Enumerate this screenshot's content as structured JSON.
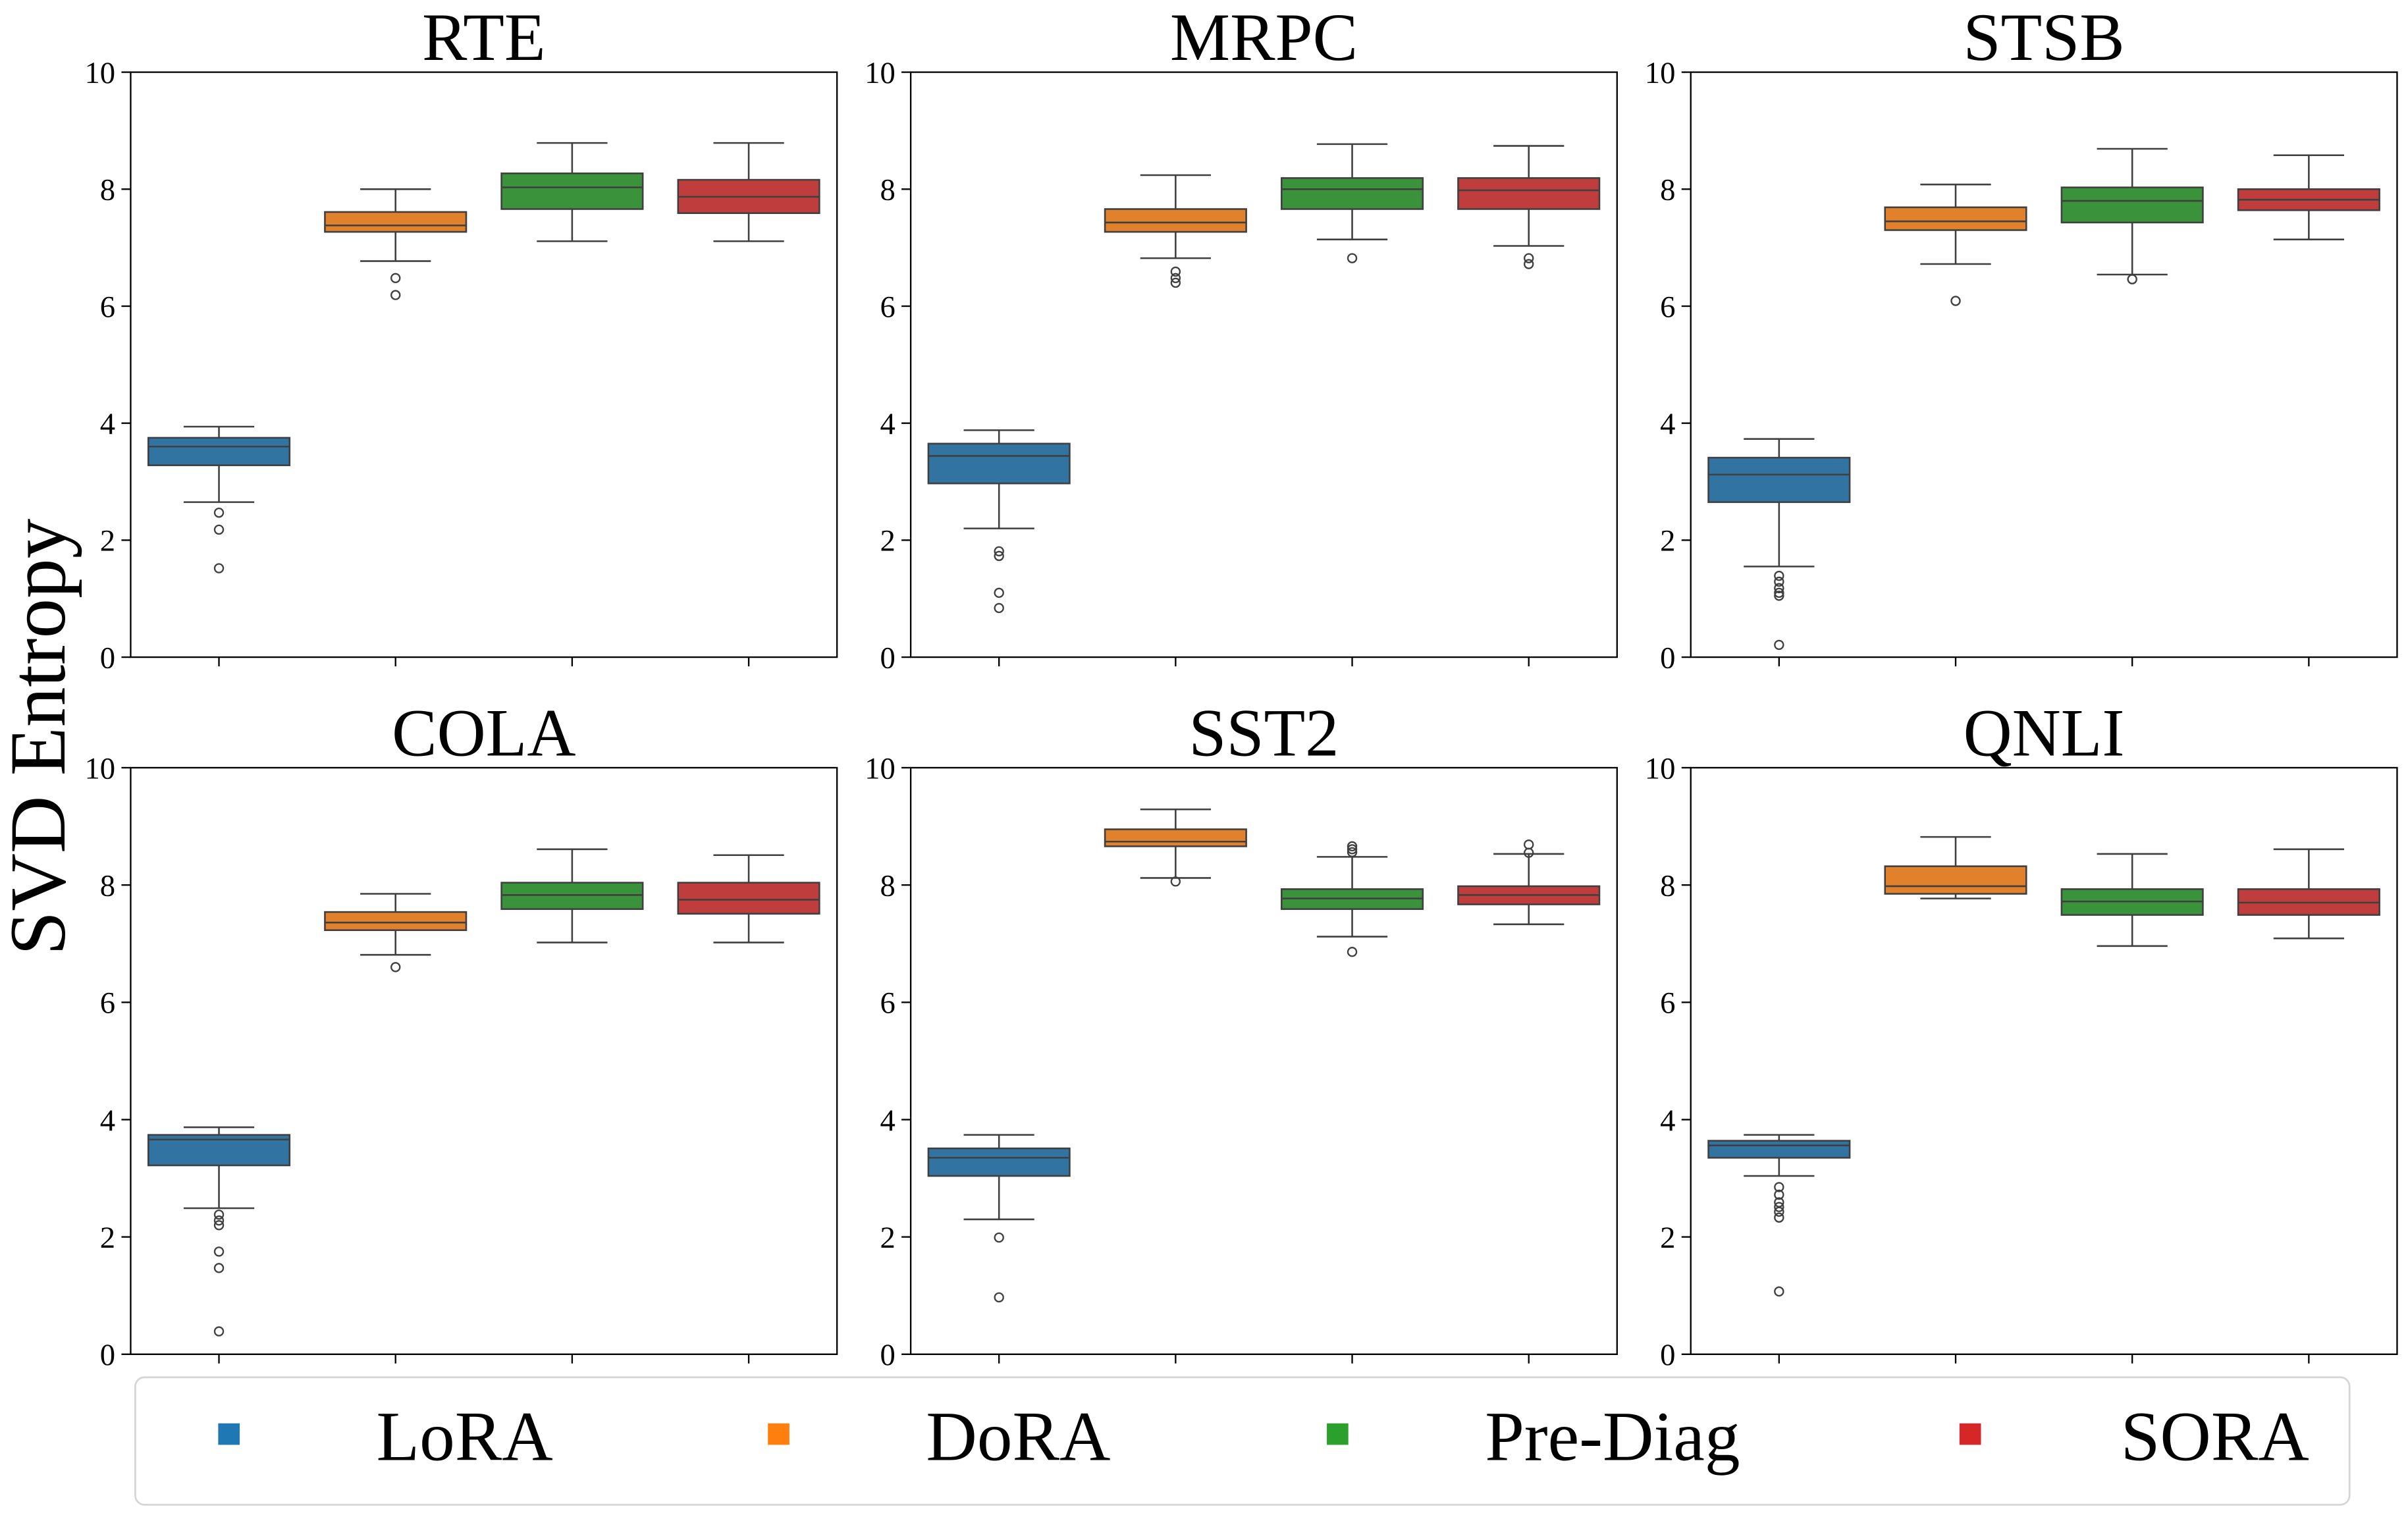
{
  "chart_data": [
    {
      "type": "box",
      "title": "RTE",
      "ylim": [
        0,
        10
      ],
      "yticks": [
        0,
        2,
        4,
        6,
        8,
        10
      ],
      "series": [
        {
          "name": "LoRA",
          "whislo": 2.65,
          "q1": 3.28,
          "med": 3.6,
          "q3": 3.75,
          "whishi": 3.94,
          "fliers": [
            2.47,
            2.18,
            1.52
          ]
        },
        {
          "name": "DoRA",
          "whislo": 6.77,
          "q1": 7.27,
          "med": 7.38,
          "q3": 7.61,
          "whishi": 8.0,
          "fliers": [
            6.48,
            6.19
          ]
        },
        {
          "name": "Pre-Diag",
          "whislo": 7.11,
          "q1": 7.66,
          "med": 8.03,
          "q3": 8.27,
          "whishi": 8.79,
          "fliers": []
        },
        {
          "name": "SORA",
          "whislo": 7.11,
          "q1": 7.59,
          "med": 7.87,
          "q3": 8.16,
          "whishi": 8.79,
          "fliers": []
        }
      ]
    },
    {
      "type": "box",
      "title": "MRPC",
      "ylim": [
        0,
        10
      ],
      "yticks": [
        0,
        2,
        4,
        6,
        8,
        10
      ],
      "series": [
        {
          "name": "LoRA",
          "whislo": 2.2,
          "q1": 2.97,
          "med": 3.44,
          "q3": 3.65,
          "whishi": 3.88,
          "fliers": [
            1.81,
            1.73,
            1.1,
            0.84
          ]
        },
        {
          "name": "DoRA",
          "whislo": 6.82,
          "q1": 7.27,
          "med": 7.43,
          "q3": 7.66,
          "whishi": 8.24,
          "fliers": [
            6.59,
            6.48,
            6.4
          ]
        },
        {
          "name": "Pre-Diag",
          "whislo": 7.14,
          "q1": 7.66,
          "med": 8.0,
          "q3": 8.19,
          "whishi": 8.77,
          "fliers": [
            6.82
          ]
        },
        {
          "name": "SORA",
          "whislo": 7.03,
          "q1": 7.66,
          "med": 7.98,
          "q3": 8.19,
          "whishi": 8.74,
          "fliers": [
            6.82,
            6.72
          ]
        }
      ]
    },
    {
      "type": "box",
      "title": "STSB",
      "ylim": [
        0,
        10
      ],
      "yticks": [
        0,
        2,
        4,
        6,
        8,
        10
      ],
      "series": [
        {
          "name": "LoRA",
          "whislo": 1.55,
          "q1": 2.65,
          "med": 3.12,
          "q3": 3.41,
          "whishi": 3.73,
          "fliers": [
            1.39,
            1.29,
            1.18,
            1.1,
            1.05,
            0.21
          ]
        },
        {
          "name": "DoRA",
          "whislo": 6.72,
          "q1": 7.3,
          "med": 7.45,
          "q3": 7.69,
          "whishi": 8.08,
          "fliers": [
            6.09
          ]
        },
        {
          "name": "Pre-Diag",
          "whislo": 6.54,
          "q1": 7.43,
          "med": 7.8,
          "q3": 8.03,
          "whishi": 8.69,
          "fliers": [
            6.46
          ]
        },
        {
          "name": "SORA",
          "whislo": 7.14,
          "q1": 7.64,
          "med": 7.82,
          "q3": 8.0,
          "whishi": 8.58,
          "fliers": []
        }
      ]
    },
    {
      "type": "box",
      "title": "COLA",
      "ylim": [
        0,
        10
      ],
      "yticks": [
        0,
        2,
        4,
        6,
        8,
        10
      ],
      "series": [
        {
          "name": "LoRA",
          "whislo": 2.49,
          "q1": 3.22,
          "med": 3.66,
          "q3": 3.74,
          "whishi": 3.87,
          "fliers": [
            2.38,
            2.28,
            2.2,
            1.75,
            1.47,
            0.39
          ]
        },
        {
          "name": "DoRA",
          "whislo": 6.81,
          "q1": 7.23,
          "med": 7.36,
          "q3": 7.54,
          "whishi": 7.85,
          "fliers": [
            6.6
          ]
        },
        {
          "name": "Pre-Diag",
          "whislo": 7.02,
          "q1": 7.59,
          "med": 7.83,
          "q3": 8.04,
          "whishi": 8.61,
          "fliers": []
        },
        {
          "name": "SORA",
          "whislo": 7.02,
          "q1": 7.51,
          "med": 7.75,
          "q3": 8.04,
          "whishi": 8.51,
          "fliers": []
        }
      ]
    },
    {
      "type": "box",
      "title": "SST2",
      "ylim": [
        0,
        10
      ],
      "yticks": [
        0,
        2,
        4,
        6,
        8,
        10
      ],
      "series": [
        {
          "name": "LoRA",
          "whislo": 2.3,
          "q1": 3.04,
          "med": 3.35,
          "q3": 3.51,
          "whishi": 3.74,
          "fliers": [
            1.99,
            0.97
          ]
        },
        {
          "name": "DoRA",
          "whislo": 8.12,
          "q1": 8.66,
          "med": 8.74,
          "q3": 8.95,
          "whishi": 9.29,
          "fliers": [
            8.06
          ]
        },
        {
          "name": "Pre-Diag",
          "whislo": 7.12,
          "q1": 7.59,
          "med": 7.77,
          "q3": 7.93,
          "whishi": 8.48,
          "fliers": [
            8.66,
            8.61,
            8.56,
            6.86
          ]
        },
        {
          "name": "SORA",
          "whislo": 7.33,
          "q1": 7.67,
          "med": 7.83,
          "q3": 7.98,
          "whishi": 8.53,
          "fliers": [
            8.69,
            8.55
          ]
        }
      ]
    },
    {
      "type": "box",
      "title": "QNLI",
      "ylim": [
        0,
        10
      ],
      "yticks": [
        0,
        2,
        4,
        6,
        8,
        10
      ],
      "series": [
        {
          "name": "LoRA",
          "whislo": 3.04,
          "q1": 3.35,
          "med": 3.56,
          "q3": 3.64,
          "whishi": 3.74,
          "fliers": [
            2.85,
            2.72,
            2.59,
            2.51,
            2.43,
            2.33,
            1.07
          ]
        },
        {
          "name": "DoRA",
          "whislo": 7.77,
          "q1": 7.85,
          "med": 7.98,
          "q3": 8.32,
          "whishi": 8.82,
          "fliers": []
        },
        {
          "name": "Pre-Diag",
          "whislo": 6.96,
          "q1": 7.49,
          "med": 7.72,
          "q3": 7.93,
          "whishi": 8.53,
          "fliers": []
        },
        {
          "name": "SORA",
          "whislo": 7.09,
          "q1": 7.49,
          "med": 7.7,
          "q3": 7.93,
          "whishi": 8.61,
          "fliers": []
        }
      ]
    }
  ],
  "ylabel": "SVD Entropy",
  "legend": {
    "placement": "bottom",
    "items": [
      {
        "label": "LoRA",
        "color": "#1f77b4"
      },
      {
        "label": "DoRA",
        "color": "#ff7f0e"
      },
      {
        "label": "Pre-Diag",
        "color": "#2ca02c"
      },
      {
        "label": "SORA",
        "color": "#d62728"
      }
    ]
  },
  "box_colors": [
    "#3274a1",
    "#e1812c",
    "#3a923a",
    "#c03d3e"
  ]
}
